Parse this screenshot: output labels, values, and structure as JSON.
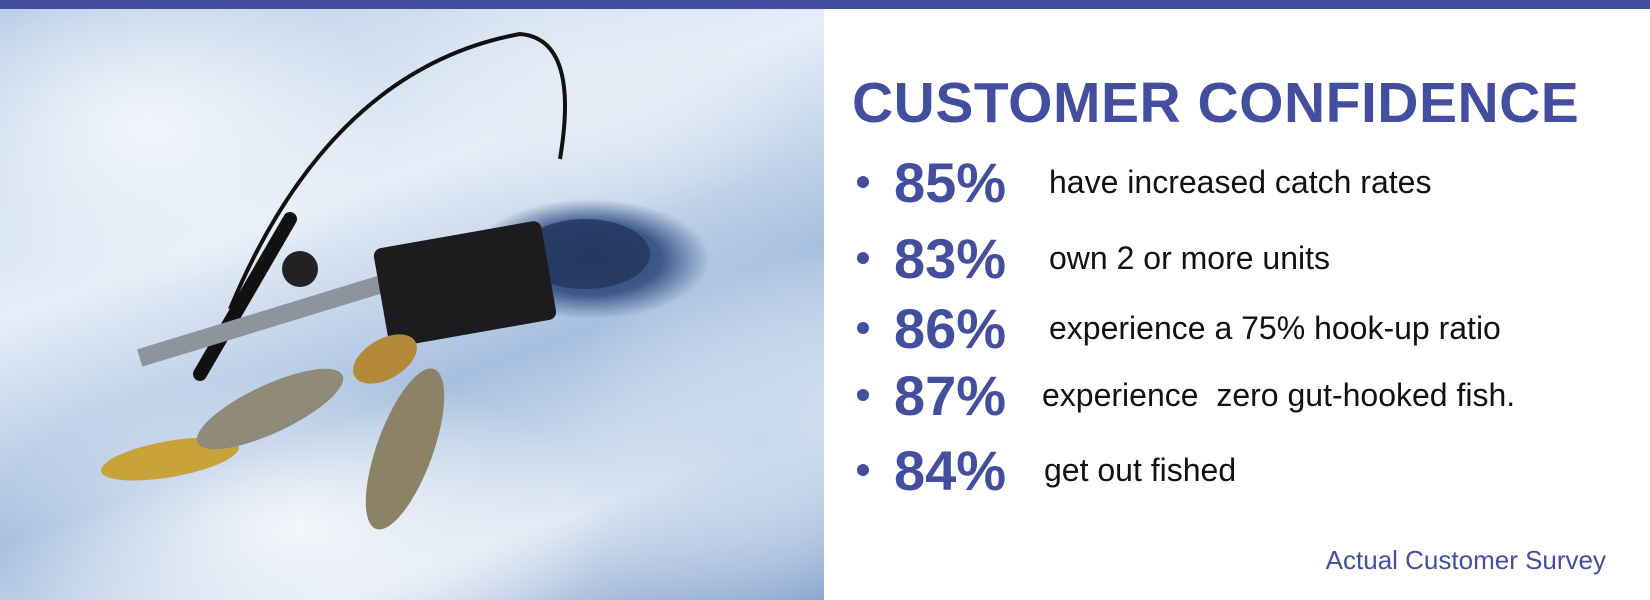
{
  "colors": {
    "accent": "#434e9e",
    "text": "#111111"
  },
  "photo": {
    "icon": "ice-fishing-photo"
  },
  "heading": "CUSTOMER CONFIDENCE",
  "stats": [
    {
      "percent": "85%",
      "text": "have increased catch rates"
    },
    {
      "percent": "83%",
      "text": "own 2 or more units"
    },
    {
      "percent": "86%",
      "text": "experience a 75% hook-up ratio"
    },
    {
      "percent": "87%",
      "text": "experience  zero gut-hooked fish."
    },
    {
      "percent": "84%",
      "text": "get out fished"
    }
  ],
  "footer": "Actual Customer Survey"
}
